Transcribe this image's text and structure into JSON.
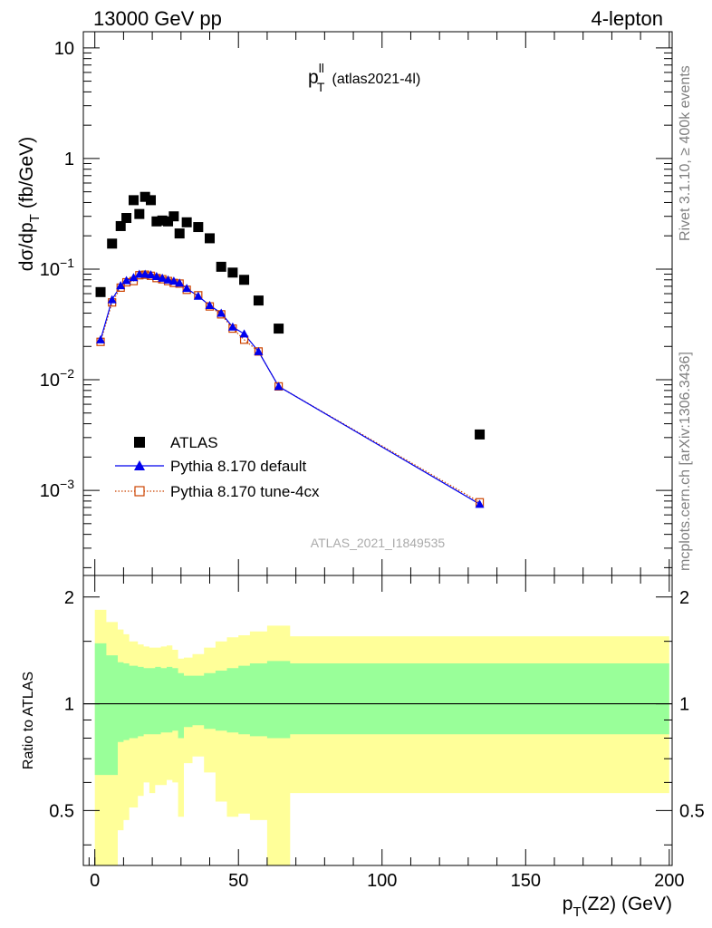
{
  "header": {
    "left": "13000 GeV pp",
    "right": "4-lepton"
  },
  "side_labels": {
    "rivet": "Rivet 3.1.10, ≥ 400k events",
    "source": "mcplots.cern.ch [arXiv:1306.3436]"
  },
  "chart_data": [
    {
      "type": "scatter",
      "title": "p_T^ll (atlas2021-4l)",
      "title_main": "p",
      "title_sup": "ll",
      "title_sub": "T",
      "title_note": "(atlas2021-4l)",
      "watermark": "ATLAS_2021_I1849535",
      "ylabel": "dσ/dp_T (fb/GeV)",
      "ylabel_main": "dσ/dp",
      "ylabel_sub": "T",
      "ylabel_unit": "(fb/GeV)",
      "yscale": "log",
      "xlim": [
        -4,
        201
      ],
      "ylim": [
        0.00017,
        14
      ],
      "yticks": [
        {
          "value": 10,
          "label": "10"
        },
        {
          "value": 1,
          "label": "1"
        },
        {
          "value": 0.1,
          "label": "10",
          "exp": "−1"
        },
        {
          "value": 0.01,
          "label": "10",
          "exp": "−2"
        },
        {
          "value": 0.001,
          "label": "10",
          "exp": "−3"
        }
      ],
      "legend": [
        {
          "name": "ATLAS",
          "color": "#000000",
          "marker": "square"
        },
        {
          "name": "Pythia 8.170 default",
          "color": "#0000ee",
          "marker": "triangle"
        },
        {
          "name": "Pythia 8.170 tune-4cx",
          "color": "#cc4400",
          "marker": "open-square"
        }
      ],
      "legend_position": "lower-left",
      "series": [
        {
          "name": "ATLAS",
          "color": "#000000",
          "x": [
            2,
            6,
            9,
            11,
            13.5,
            15.5,
            17.5,
            19.5,
            21.5,
            23.5,
            25.5,
            27.5,
            29.5,
            32,
            36,
            40,
            44,
            48,
            52,
            57,
            64,
            134
          ],
          "y": [
            0.062,
            0.17,
            0.245,
            0.29,
            0.42,
            0.315,
            0.45,
            0.42,
            0.27,
            0.275,
            0.27,
            0.3,
            0.21,
            0.265,
            0.24,
            0.19,
            0.105,
            0.093,
            0.08,
            0.052,
            0.029,
            0.0032
          ]
        },
        {
          "name": "Pythia 8.170 default",
          "color": "#0000ee",
          "x": [
            2,
            6,
            9,
            11,
            13.5,
            15.5,
            17.5,
            19.5,
            21.5,
            23.5,
            25.5,
            27.5,
            29.5,
            32,
            36,
            40,
            44,
            48,
            52,
            57,
            64,
            134
          ],
          "y": [
            0.023,
            0.053,
            0.071,
            0.079,
            0.084,
            0.09,
            0.09,
            0.089,
            0.086,
            0.083,
            0.08,
            0.078,
            0.075,
            0.067,
            0.057,
            0.047,
            0.04,
            0.03,
            0.026,
            0.018,
            0.0087,
            0.00075
          ]
        },
        {
          "name": "Pythia 8.170 tune-4cx",
          "color": "#cc4400",
          "x": [
            2,
            6,
            9,
            11,
            13.5,
            15.5,
            17.5,
            19.5,
            21.5,
            23.5,
            25.5,
            27.5,
            29.5,
            32,
            36,
            40,
            44,
            48,
            52,
            57,
            64,
            134
          ],
          "y": [
            0.022,
            0.05,
            0.068,
            0.076,
            0.078,
            0.088,
            0.089,
            0.087,
            0.083,
            0.081,
            0.078,
            0.075,
            0.074,
            0.065,
            0.058,
            0.046,
            0.039,
            0.029,
            0.023,
            0.018,
            0.0087,
            0.00078
          ]
        }
      ]
    },
    {
      "type": "area",
      "ylabel": "Ratio to ATLAS",
      "xlabel": "p_T(Z2) (GeV)",
      "xlabel_main": "p",
      "xlabel_sub": "T",
      "xlabel_rest": "(Z2) (GeV)",
      "xlim": [
        -4,
        201
      ],
      "ylim": [
        0.35,
        2.3
      ],
      "xticks": [
        0,
        50,
        100,
        150,
        200
      ],
      "yticks": [
        0.5,
        1,
        2
      ],
      "reference_line": 1,
      "bands": {
        "edges": [
          0,
          4,
          8,
          10,
          12,
          15,
          17,
          19,
          21,
          23,
          25,
          27,
          29,
          31,
          34,
          38,
          42,
          46,
          50,
          54,
          60,
          68,
          200
        ],
        "inner_lo": [
          0.63,
          0.63,
          0.78,
          0.79,
          0.8,
          0.81,
          0.82,
          0.82,
          0.82,
          0.83,
          0.83,
          0.84,
          0.8,
          0.86,
          0.87,
          0.85,
          0.84,
          0.83,
          0.82,
          0.81,
          0.8,
          0.82
        ],
        "inner_hi": [
          1.48,
          1.37,
          1.31,
          1.3,
          1.28,
          1.27,
          1.26,
          1.26,
          1.27,
          1.26,
          1.27,
          1.26,
          1.22,
          1.2,
          1.2,
          1.22,
          1.24,
          1.26,
          1.28,
          1.3,
          1.32,
          1.3
        ],
        "outer_lo": [
          0.3,
          0.3,
          0.44,
          0.47,
          0.51,
          0.55,
          0.6,
          0.56,
          0.59,
          0.59,
          0.61,
          0.6,
          0.48,
          0.68,
          0.71,
          0.64,
          0.53,
          0.48,
          0.49,
          0.47,
          0.3,
          0.56
        ],
        "outer_hi": [
          1.84,
          1.7,
          1.62,
          1.57,
          1.5,
          1.47,
          1.45,
          1.44,
          1.44,
          1.45,
          1.46,
          1.42,
          1.34,
          1.35,
          1.38,
          1.44,
          1.5,
          1.54,
          1.56,
          1.6,
          1.66,
          1.55
        ]
      },
      "colors": {
        "inner": "#99ff99",
        "outer": "#ffff99",
        "reference": "#000000"
      }
    }
  ]
}
